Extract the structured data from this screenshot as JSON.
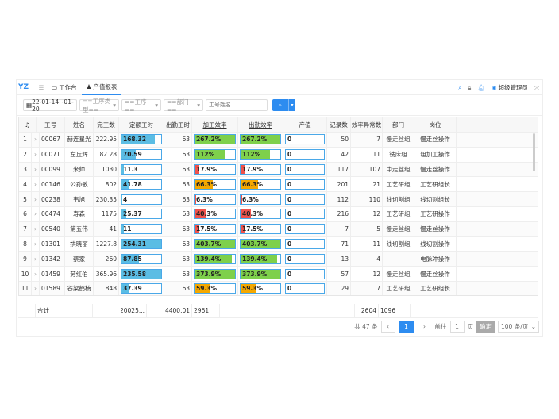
{
  "topbar": {
    "logo": "YZ",
    "tabs": [
      {
        "label": "工作台",
        "icon": "monitor-icon"
      },
      {
        "label": "产值报表",
        "icon": "person-icon",
        "active": true
      }
    ],
    "user": "超级管理员"
  },
  "filters": {
    "date": "22-01-14~01-20",
    "process_type": "==工序类型==",
    "process": "==工序==",
    "dept": "==部门==",
    "search_placeholder": "工号姓名"
  },
  "columns": [
    "工号",
    "姓名",
    "完工数",
    "定额工时",
    "出勤工时",
    "加工效率",
    "出勤效率",
    "产值",
    "记录数",
    "效率异常数",
    "部门",
    "岗位"
  ],
  "colors": {
    "primary": "#2d8cf0",
    "bar_blue": "#5bbde4",
    "green": "#7ed04b",
    "orange": "#f5a800",
    "red": "#f0524b"
  },
  "rows": [
    {
      "idx": "1",
      "id": "00067",
      "name": "赫连星光",
      "done": "222.95",
      "quota": "168.32",
      "att": "63",
      "eff": "267.2%",
      "aeff": "267.2%",
      "value": "0",
      "rec": "50",
      "abn": "7",
      "dept": "慢走丝组",
      "post": "慢走丝操作"
    },
    {
      "idx": "2",
      "id": "00071",
      "name": "左丘辉",
      "done": "82.28",
      "quota": "70.59",
      "att": "63",
      "eff": "112%",
      "aeff": "112%",
      "value": "0",
      "rec": "42",
      "abn": "11",
      "dept": "铣床组",
      "post": "粗加工操作"
    },
    {
      "idx": "3",
      "id": "00099",
      "name": "米帅",
      "done": "1030",
      "quota": "11.3",
      "att": "63",
      "eff": "17.9%",
      "aeff": "17.9%",
      "value": "0",
      "rec": "117",
      "abn": "107",
      "dept": "中走丝组",
      "post": "慢走丝操作"
    },
    {
      "idx": "4",
      "id": "00146",
      "name": "公孙敏",
      "done": "802",
      "quota": "41.78",
      "att": "63",
      "eff": "66.3%",
      "aeff": "66.3%",
      "value": "0",
      "rec": "201",
      "abn": "21",
      "dept": "工艺研组",
      "post": "工艺研组长"
    },
    {
      "idx": "5",
      "id": "00238",
      "name": "韦旭",
      "done": "230.35",
      "quota": "4",
      "att": "63",
      "eff": "6.3%",
      "aeff": "6.3%",
      "value": "0",
      "rec": "112",
      "abn": "110",
      "dept": "线切割组",
      "post": "线切割组长"
    },
    {
      "idx": "6",
      "id": "00474",
      "name": "寿森",
      "done": "1175",
      "quota": "25.37",
      "att": "63",
      "eff": "40.3%",
      "aeff": "40.3%",
      "value": "0",
      "rec": "216",
      "abn": "12",
      "dept": "工艺研组",
      "post": "工艺研操作"
    },
    {
      "idx": "7",
      "id": "00540",
      "name": "第五伟",
      "done": "41",
      "quota": "11",
      "att": "63",
      "eff": "17.5%",
      "aeff": "17.5%",
      "value": "0",
      "rec": "7",
      "abn": "5",
      "dept": "慢走丝组",
      "post": "慢走丝操作"
    },
    {
      "idx": "8",
      "id": "01301",
      "name": "拱晓丽",
      "done": "1227.8",
      "quota": "254.31",
      "att": "63",
      "eff": "403.7%",
      "aeff": "403.7%",
      "value": "0",
      "rec": "71",
      "abn": "11",
      "dept": "线切割组",
      "post": "线切割操作"
    },
    {
      "idx": "9",
      "id": "01342",
      "name": "蔡家",
      "done": "260",
      "quota": "87.85",
      "att": "63",
      "eff": "139.4%",
      "aeff": "139.4%",
      "value": "0",
      "rec": "13",
      "abn": "4",
      "dept": "",
      "post": "电脉冲操作"
    },
    {
      "idx": "10",
      "id": "01459",
      "name": "劳红伯",
      "done": "365.96",
      "quota": "235.58",
      "att": "63",
      "eff": "373.9%",
      "aeff": "373.9%",
      "value": "0",
      "rec": "57",
      "abn": "12",
      "dept": "慢走丝组",
      "post": "慢走丝操作"
    },
    {
      "idx": "11",
      "id": "01589",
      "name": "谷梁鹤楠",
      "done": "848",
      "quota": "37.39",
      "att": "63",
      "eff": "59.3%",
      "aeff": "59.3%",
      "value": "0",
      "rec": "29",
      "abn": "7",
      "dept": "工艺研组",
      "post": "工艺研组长"
    }
  ],
  "total": {
    "label": "合计",
    "done": "20025...",
    "quota": "4400.01",
    "att": "2961",
    "rec": "2604",
    "abn": "1096"
  },
  "pager": {
    "total": "共 47 条",
    "prev": "‹",
    "page": "1",
    "next": "›",
    "goto": "前往",
    "goto_value": "1",
    "page_unit": "页",
    "ok": "确定",
    "size": "100 条/页"
  }
}
